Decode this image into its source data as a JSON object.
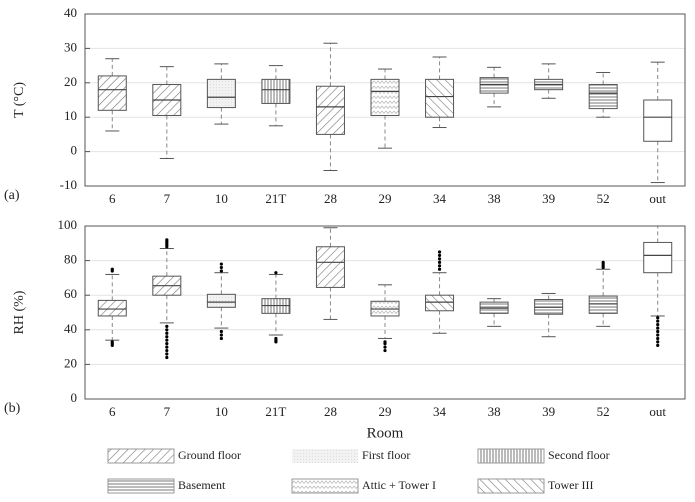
{
  "chart_data": [
    {
      "type": "box",
      "panel_label": "(a)",
      "ylabel": "T (°C)",
      "categories": [
        "6",
        "7",
        "10",
        "21T",
        "28",
        "29",
        "34",
        "38",
        "39",
        "52",
        "out"
      ],
      "patterns": [
        "diag",
        "diag",
        "light",
        "vert",
        "diag",
        "zigzag",
        "back",
        "horiz",
        "horiz",
        "horiz",
        "none"
      ],
      "boxes": [
        {
          "whislo": 6,
          "q1": 12,
          "med": 18,
          "q3": 22,
          "whishi": 27,
          "fliers": []
        },
        {
          "whislo": -2,
          "q1": 10.5,
          "med": 15,
          "q3": 19.5,
          "whishi": 24.7,
          "fliers": []
        },
        {
          "whislo": 8,
          "q1": 12.8,
          "med": 15.8,
          "q3": 21,
          "whishi": 25.5,
          "fliers": []
        },
        {
          "whislo": 7.5,
          "q1": 14,
          "med": 18,
          "q3": 21,
          "whishi": 25,
          "fliers": []
        },
        {
          "whislo": -5.5,
          "q1": 5,
          "med": 13,
          "q3": 19,
          "whishi": 31.5,
          "fliers": []
        },
        {
          "whislo": 1,
          "q1": 10.5,
          "med": 17.5,
          "q3": 21,
          "whishi": 24,
          "fliers": []
        },
        {
          "whislo": 7,
          "q1": 10,
          "med": 16,
          "q3": 21,
          "whishi": 27.5,
          "fliers": []
        },
        {
          "whislo": 13,
          "q1": 17,
          "med": 19.5,
          "q3": 21.5,
          "whishi": 24.5,
          "fliers": []
        },
        {
          "whislo": 15.5,
          "q1": 18,
          "med": 19.5,
          "q3": 21,
          "whishi": 25.5,
          "fliers": []
        },
        {
          "whislo": 10,
          "q1": 12.5,
          "med": 17,
          "q3": 19.5,
          "whishi": 23,
          "fliers": []
        },
        {
          "whislo": -9,
          "q1": 3,
          "med": 10,
          "q3": 15,
          "whishi": 26,
          "fliers": []
        }
      ],
      "ylim": [
        -10,
        40
      ],
      "yticks": [
        -10,
        0,
        10,
        20,
        30,
        40
      ],
      "grid": true
    },
    {
      "type": "box",
      "panel_label": "(b)",
      "ylabel": "RH (%)",
      "xlabel": "Room",
      "categories": [
        "6",
        "7",
        "10",
        "21T",
        "28",
        "29",
        "34",
        "38",
        "39",
        "52",
        "out"
      ],
      "patterns": [
        "diag",
        "diag",
        "light",
        "vert",
        "diag",
        "zigzag",
        "back",
        "horiz",
        "horiz",
        "horiz",
        "none"
      ],
      "boxes": [
        {
          "whislo": 34,
          "q1": 48,
          "med": 52,
          "q3": 57,
          "whishi": 72,
          "fliers": [
            74,
            75,
            31,
            32,
            33
          ]
        },
        {
          "whislo": 44,
          "q1": 60,
          "med": 65.5,
          "q3": 71,
          "whishi": 87,
          "fliers": [
            88,
            89,
            90,
            91,
            92,
            24,
            26,
            28,
            30,
            32,
            34,
            36,
            38,
            40,
            42
          ]
        },
        {
          "whislo": 41,
          "q1": 53,
          "med": 56,
          "q3": 60.5,
          "whishi": 73,
          "fliers": [
            74,
            76,
            78,
            35,
            37,
            39
          ]
        },
        {
          "whislo": 37,
          "q1": 49.5,
          "med": 54,
          "q3": 58,
          "whishi": 72,
          "fliers": [
            73,
            33,
            34,
            35
          ]
        },
        {
          "whislo": 46,
          "q1": 64.5,
          "med": 79,
          "q3": 88,
          "whishi": 99,
          "fliers": []
        },
        {
          "whislo": 35,
          "q1": 48,
          "med": 52,
          "q3": 56.5,
          "whishi": 66,
          "fliers": [
            28,
            30,
            32,
            33
          ]
        },
        {
          "whislo": 38,
          "q1": 51,
          "med": 56,
          "q3": 60,
          "whishi": 73,
          "fliers": [
            75,
            77,
            79,
            81,
            83,
            85
          ]
        },
        {
          "whislo": 42,
          "q1": 49.5,
          "med": 52.5,
          "q3": 56,
          "whishi": 58,
          "fliers": []
        },
        {
          "whislo": 36,
          "q1": 49,
          "med": 53,
          "q3": 57.5,
          "whishi": 61,
          "fliers": []
        },
        {
          "whislo": 42,
          "q1": 49.5,
          "med": 55,
          "q3": 59.5,
          "whishi": 75,
          "fliers": [
            76,
            77,
            78,
            79
          ]
        },
        {
          "whislo": 48,
          "q1": 73,
          "med": 83,
          "q3": 90.5,
          "whishi": 100,
          "fliers": [
            31,
            33,
            35,
            37,
            39,
            41,
            43,
            45,
            47
          ]
        }
      ],
      "ylim": [
        0,
        100
      ],
      "yticks": [
        0,
        20,
        40,
        60,
        80,
        100
      ],
      "grid": true,
      "legend": [
        {
          "name": "Ground floor",
          "pattern": "diag"
        },
        {
          "name": "First floor",
          "pattern": "light"
        },
        {
          "name": "Second floor",
          "pattern": "vert"
        },
        {
          "name": "Basement",
          "pattern": "horiz"
        },
        {
          "name": "Attic + Tower I",
          "pattern": "zigzag"
        },
        {
          "name": "Tower III",
          "pattern": "back"
        }
      ]
    }
  ]
}
